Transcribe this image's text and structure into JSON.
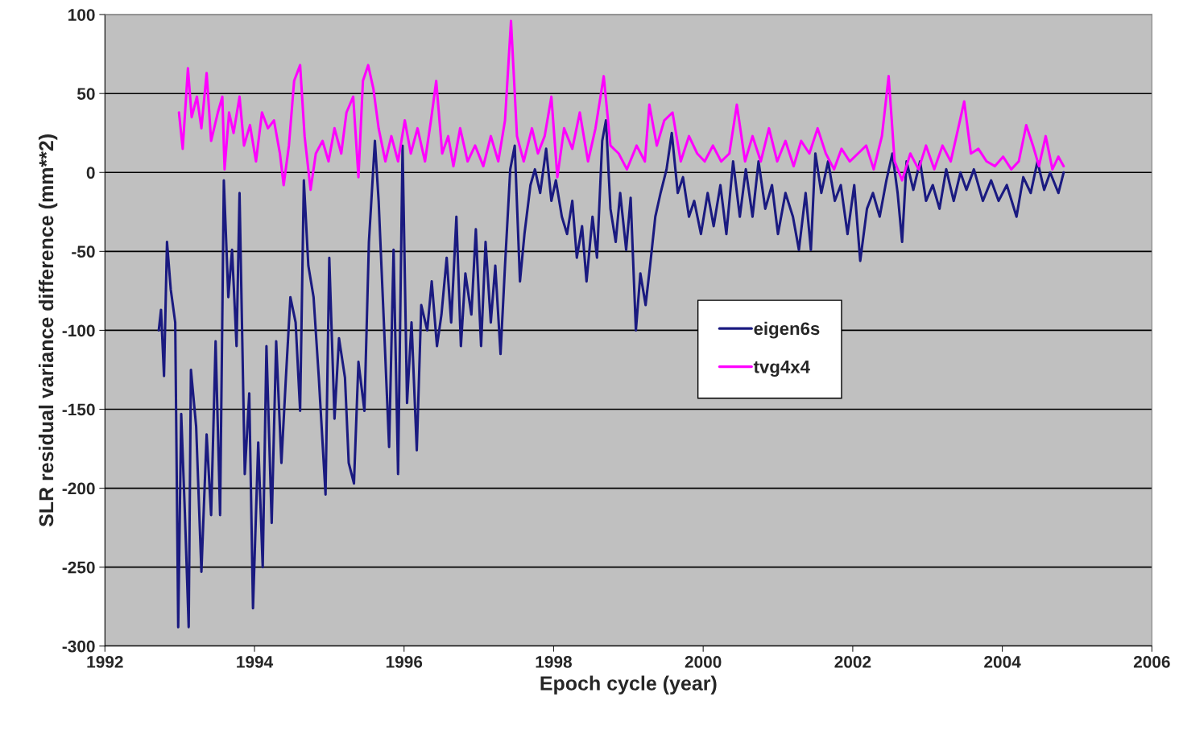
{
  "chart_data": {
    "type": "line",
    "xlabel": "Epoch cycle (year)",
    "ylabel": "SLR residual variance difference (mm**2)",
    "xlim": [
      1992,
      2006
    ],
    "xticks": [
      1992,
      1994,
      1996,
      1998,
      2000,
      2002,
      2004,
      2006
    ],
    "ylim": [
      -300,
      100
    ],
    "yticks": [
      -300,
      -250,
      -200,
      -150,
      -100,
      -50,
      0,
      50,
      100
    ],
    "grid": "y",
    "legend": "center",
    "marker": "none",
    "line_style": "solid",
    "series": [
      {
        "name": "eigen6s",
        "color": "#1a1a80",
        "x": [
          1992.72,
          1992.75,
          1992.79,
          1992.83,
          1992.88,
          1992.94,
          1992.98,
          1993.02,
          1993.07,
          1993.12,
          1993.15,
          1993.22,
          1993.29,
          1993.36,
          1993.42,
          1993.48,
          1993.54,
          1993.59,
          1993.65,
          1993.7,
          1993.76,
          1993.8,
          1993.87,
          1993.93,
          1993.98,
          1994.05,
          1994.11,
          1994.16,
          1994.23,
          1994.29,
          1994.36,
          1994.42,
          1994.48,
          1994.55,
          1994.61,
          1994.66,
          1994.72,
          1994.79,
          1994.86,
          1994.95,
          1995.0,
          1995.07,
          1995.13,
          1995.21,
          1995.26,
          1995.33,
          1995.39,
          1995.47,
          1995.53,
          1995.61,
          1995.66,
          1995.73,
          1995.8,
          1995.86,
          1995.92,
          1995.98,
          1996.04,
          1996.1,
          1996.17,
          1996.23,
          1996.31,
          1996.37,
          1996.44,
          1996.5,
          1996.57,
          1996.63,
          1996.7,
          1996.76,
          1996.82,
          1996.9,
          1996.96,
          1997.03,
          1997.09,
          1997.16,
          1997.22,
          1997.29,
          1997.35,
          1997.42,
          1997.48,
          1997.55,
          1997.61,
          1997.69,
          1997.75,
          1997.82,
          1997.9,
          1997.97,
          1998.03,
          1998.11,
          1998.18,
          1998.25,
          1998.31,
          1998.38,
          1998.44,
          1998.52,
          1998.58,
          1998.65,
          1998.7,
          1998.76,
          1998.83,
          1998.89,
          1998.97,
          1999.03,
          1999.1,
          1999.16,
          1999.23,
          1999.29,
          1999.36,
          1999.43,
          1999.51,
          1999.58,
          1999.66,
          1999.73,
          1999.81,
          1999.88,
          1999.97,
          2000.06,
          2000.14,
          2000.23,
          2000.31,
          2000.4,
          2000.49,
          2000.57,
          2000.66,
          2000.74,
          2000.83,
          2000.92,
          2001.0,
          2001.1,
          2001.2,
          2001.28,
          2001.37,
          2001.44,
          2001.5,
          2001.58,
          2001.67,
          2001.76,
          2001.84,
          2001.93,
          2002.02,
          2002.1,
          2002.19,
          2002.27,
          2002.36,
          2002.45,
          2002.53,
          2002.6,
          2002.66,
          2002.72,
          2002.81,
          2002.9,
          2002.98,
          2003.07,
          2003.16,
          2003.25,
          2003.35,
          2003.44,
          2003.52,
          2003.62,
          2003.74,
          2003.85,
          2003.95,
          2004.06,
          2004.19,
          2004.28,
          2004.38,
          2004.47,
          2004.56,
          2004.64,
          2004.75,
          2004.82
        ],
        "values": [
          -100,
          -87,
          -129,
          -44,
          -74,
          -95,
          -288,
          -153,
          -217,
          -288,
          -125,
          -161,
          -253,
          -166,
          -217,
          -107,
          -217,
          -5,
          -79,
          -49,
          -110,
          -13,
          -191,
          -140,
          -276,
          -171,
          -250,
          -110,
          -222,
          -107,
          -184,
          -130,
          -79,
          -95,
          -151,
          -5,
          -59,
          -79,
          -130,
          -204,
          -54,
          -156,
          -105,
          -130,
          -184,
          -197,
          -120,
          -151,
          -44,
          20,
          -18,
          -95,
          -174,
          -49,
          -191,
          17,
          -146,
          -95,
          -176,
          -84,
          -100,
          -69,
          -110,
          -90,
          -54,
          -95,
          -28,
          -110,
          -64,
          -90,
          -36,
          -110,
          -44,
          -95,
          -59,
          -115,
          -59,
          2,
          17,
          -69,
          -39,
          -8,
          2,
          -13,
          15,
          -18,
          -5,
          -28,
          -39,
          -18,
          -54,
          -34,
          -69,
          -28,
          -54,
          20,
          33,
          -23,
          -44,
          -13,
          -49,
          -16,
          -100,
          -64,
          -84,
          -59,
          -28,
          -13,
          2,
          25,
          -13,
          -3,
          -28,
          -18,
          -39,
          -13,
          -34,
          -8,
          -39,
          7,
          -28,
          2,
          -28,
          7,
          -23,
          -8,
          -39,
          -13,
          -28,
          -49,
          -13,
          -49,
          12,
          -13,
          7,
          -18,
          -8,
          -39,
          -8,
          -56,
          -23,
          -13,
          -28,
          -5,
          12,
          -13,
          -44,
          7,
          -11,
          7,
          -18,
          -8,
          -23,
          2,
          -18,
          0,
          -11,
          2,
          -18,
          -5,
          -18,
          -8,
          -28,
          -3,
          -13,
          7,
          -11,
          0,
          -13,
          0
        ]
      },
      {
        "name": "tvg4x4",
        "color": "#ff00ff",
        "x": [
          1992.99,
          1993.04,
          1993.11,
          1993.16,
          1993.23,
          1993.29,
          1993.36,
          1993.42,
          1993.51,
          1993.57,
          1993.6,
          1993.66,
          1993.72,
          1993.8,
          1993.86,
          1993.94,
          1994.02,
          1994.1,
          1994.18,
          1994.26,
          1994.34,
          1994.39,
          1994.46,
          1994.53,
          1994.61,
          1994.67,
          1994.75,
          1994.82,
          1994.91,
          1994.99,
          1995.07,
          1995.16,
          1995.23,
          1995.32,
          1995.39,
          1995.45,
          1995.52,
          1995.59,
          1995.66,
          1995.75,
          1995.83,
          1995.92,
          1996.01,
          1996.09,
          1996.18,
          1996.28,
          1996.36,
          1996.43,
          1996.51,
          1996.59,
          1996.66,
          1996.75,
          1996.85,
          1996.95,
          1997.06,
          1997.16,
          1997.26,
          1997.35,
          1997.43,
          1997.51,
          1997.6,
          1997.71,
          1997.79,
          1997.88,
          1997.97,
          1998.05,
          1998.14,
          1998.25,
          1998.35,
          1998.46,
          1998.56,
          1998.67,
          1998.76,
          1998.87,
          1998.98,
          1999.11,
          1999.22,
          1999.28,
          1999.38,
          1999.48,
          1999.59,
          1999.7,
          1999.81,
          1999.92,
          2000.02,
          2000.13,
          2000.24,
          2000.35,
          2000.45,
          2000.56,
          2000.66,
          2000.77,
          2000.88,
          2000.99,
          2001.1,
          2001.21,
          2001.31,
          2001.42,
          2001.53,
          2001.64,
          2001.75,
          2001.85,
          2001.96,
          2002.07,
          2002.18,
          2002.28,
          2002.39,
          2002.48,
          2002.56,
          2002.66,
          2002.77,
          2002.88,
          2002.98,
          2003.09,
          2003.2,
          2003.31,
          2003.42,
          2003.49,
          2003.58,
          2003.68,
          2003.79,
          2003.9,
          2004.01,
          2004.12,
          2004.22,
          2004.32,
          2004.41,
          2004.49,
          2004.58,
          2004.67,
          2004.75,
          2004.82
        ],
        "values": [
          38,
          15,
          66,
          35,
          48,
          28,
          63,
          20,
          38,
          48,
          2,
          38,
          25,
          48,
          17,
          30,
          7,
          38,
          28,
          33,
          12,
          -8,
          17,
          58,
          68,
          23,
          -11,
          12,
          20,
          7,
          28,
          12,
          38,
          48,
          -3,
          58,
          68,
          53,
          28,
          7,
          23,
          7,
          33,
          12,
          28,
          7,
          33,
          58,
          12,
          23,
          4,
          28,
          7,
          17,
          4,
          23,
          7,
          33,
          96,
          23,
          7,
          28,
          12,
          23,
          48,
          -3,
          28,
          15,
          38,
          7,
          28,
          61,
          17,
          12,
          2,
          17,
          7,
          43,
          17,
          33,
          38,
          7,
          23,
          12,
          7,
          17,
          7,
          12,
          43,
          7,
          23,
          7,
          28,
          7,
          20,
          4,
          20,
          12,
          28,
          12,
          2,
          15,
          7,
          12,
          17,
          2,
          23,
          61,
          7,
          -5,
          12,
          2,
          17,
          2,
          17,
          7,
          30,
          45,
          12,
          15,
          7,
          4,
          10,
          2,
          7,
          30,
          17,
          4,
          23,
          2,
          10,
          4
        ]
      }
    ]
  }
}
